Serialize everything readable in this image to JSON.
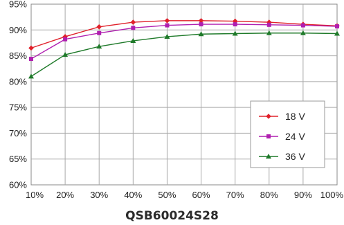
{
  "chart_data": {
    "type": "line",
    "title": "QSB60024S28",
    "xlabel": "",
    "ylabel": "",
    "categories": [
      "10%",
      "20%",
      "30%",
      "40%",
      "50%",
      "60%",
      "70%",
      "80%",
      "90%",
      "100%"
    ],
    "x": [
      10,
      20,
      30,
      40,
      50,
      60,
      70,
      80,
      90,
      100
    ],
    "xlim": [
      10,
      100
    ],
    "ylim": [
      60,
      95
    ],
    "yticks": [
      "60%",
      "65%",
      "70%",
      "75%",
      "80%",
      "85%",
      "90%",
      "95%"
    ],
    "ytick_values": [
      60,
      65,
      70,
      75,
      80,
      85,
      90,
      95
    ],
    "grid": true,
    "legend_position": "right",
    "series": [
      {
        "name": "18 V",
        "color": "#e0202a",
        "marker": "diamond",
        "values": [
          86.5,
          88.7,
          90.6,
          91.5,
          91.8,
          91.8,
          91.7,
          91.5,
          91.1,
          90.8
        ]
      },
      {
        "name": "24 V",
        "color": "#b01fb0",
        "marker": "square",
        "values": [
          84.4,
          88.2,
          89.4,
          90.4,
          90.9,
          91.1,
          91.1,
          91.0,
          90.9,
          90.7
        ]
      },
      {
        "name": "36 V",
        "color": "#1f7a2a",
        "marker": "triangle",
        "values": [
          81.0,
          85.2,
          86.8,
          87.9,
          88.7,
          89.2,
          89.3,
          89.4,
          89.4,
          89.3
        ]
      }
    ]
  }
}
